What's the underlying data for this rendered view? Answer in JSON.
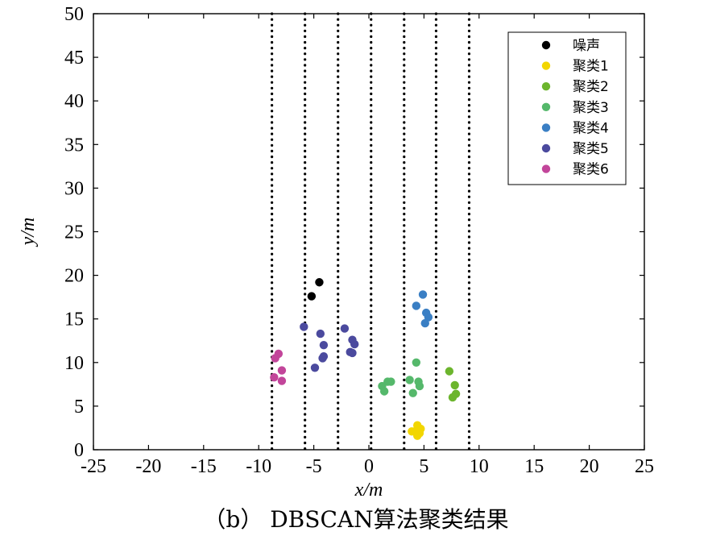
{
  "chart_data": {
    "type": "scatter",
    "caption": "（b） DBSCAN算法聚类结果",
    "xlabel": "x/m",
    "ylabel": "y/m",
    "xlim": [
      -25,
      25
    ],
    "ylim": [
      0,
      50
    ],
    "x_ticks": [
      -25,
      -20,
      -15,
      -10,
      -5,
      0,
      5,
      10,
      15,
      20,
      25
    ],
    "y_ticks": [
      0,
      5,
      10,
      15,
      20,
      25,
      30,
      35,
      40,
      45,
      50
    ],
    "grid": false,
    "legend_position": "top-right",
    "vertical_dotted_lines_x": [
      -8.8,
      -5.8,
      -2.8,
      0.2,
      3.2,
      6.1,
      9.1
    ],
    "series": [
      {
        "name": "噪声",
        "color": "#000000",
        "points": [
          [
            -4.5,
            19.2
          ],
          [
            -5.2,
            17.6
          ]
        ]
      },
      {
        "name": "聚类1",
        "color": "#f2d600",
        "points": [
          [
            4.4,
            2.8
          ],
          [
            4.7,
            2.4
          ],
          [
            4.3,
            2.2
          ],
          [
            3.9,
            2.1
          ],
          [
            4.6,
            1.9
          ],
          [
            4.4,
            1.6
          ]
        ]
      },
      {
        "name": "聚类2",
        "color": "#6cb52d",
        "points": [
          [
            7.3,
            9.0
          ],
          [
            7.8,
            7.4
          ],
          [
            7.9,
            6.4
          ],
          [
            7.6,
            6.0
          ]
        ]
      },
      {
        "name": "聚类3",
        "color": "#55b86b",
        "points": [
          [
            4.3,
            10.0
          ],
          [
            4.5,
            7.8
          ],
          [
            3.7,
            8.0
          ],
          [
            4.6,
            7.3
          ],
          [
            4.0,
            6.5
          ],
          [
            2.0,
            7.8
          ],
          [
            1.7,
            7.8
          ],
          [
            1.2,
            7.3
          ],
          [
            1.4,
            6.7
          ]
        ]
      },
      {
        "name": "聚类4",
        "color": "#3a7fc4",
        "points": [
          [
            4.9,
            17.8
          ],
          [
            4.3,
            16.5
          ],
          [
            5.2,
            15.7
          ],
          [
            5.4,
            15.2
          ],
          [
            5.1,
            14.5
          ]
        ]
      },
      {
        "name": "聚类5",
        "color": "#4b4a9e",
        "points": [
          [
            -5.9,
            14.1
          ],
          [
            -4.4,
            13.3
          ],
          [
            -4.1,
            12.0
          ],
          [
            -4.1,
            10.7
          ],
          [
            -4.2,
            10.5
          ],
          [
            -4.9,
            9.4
          ],
          [
            -2.2,
            13.9
          ],
          [
            -1.5,
            12.6
          ],
          [
            -1.3,
            12.1
          ],
          [
            -1.7,
            11.2
          ],
          [
            -1.5,
            11.1
          ]
        ]
      },
      {
        "name": "聚类6",
        "color": "#c2459a",
        "points": [
          [
            -8.2,
            11.0
          ],
          [
            -8.5,
            10.5
          ],
          [
            -7.9,
            9.1
          ],
          [
            -8.6,
            8.3
          ],
          [
            -7.9,
            7.9
          ]
        ]
      }
    ]
  }
}
